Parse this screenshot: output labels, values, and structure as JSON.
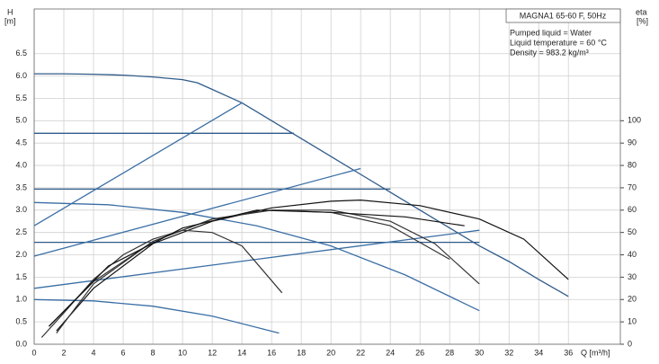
{
  "chart_data": {
    "type": "line",
    "title": "MAGNA1 65-60 F, 50Hz",
    "annotations": [
      "Pumped liquid = Water",
      "Liquid temperature = 60 °C",
      "Density = 983.2 kg/m³"
    ],
    "y_label": [
      "H",
      "[m]"
    ],
    "y2_label": [
      "eta",
      "[%]"
    ],
    "x_label": "Q [m³/h]",
    "xlim": [
      0,
      39.5
    ],
    "ylim": [
      0,
      7.5
    ],
    "y2lim": [
      0,
      150
    ],
    "xticks": [
      0,
      2,
      4,
      6,
      8,
      10,
      12,
      14,
      16,
      18,
      20,
      22,
      24,
      26,
      28,
      30,
      32,
      34,
      36
    ],
    "yticks": [
      {
        "value": 0,
        "label": "0.0"
      },
      {
        "value": 0.5,
        "label": "0.5"
      },
      {
        "value": 1,
        "label": "1.0"
      },
      {
        "value": 1.5,
        "label": "1.5"
      },
      {
        "value": 2,
        "label": "2.0"
      },
      {
        "value": 2.5,
        "label": "2.5"
      },
      {
        "value": 3,
        "label": "3.0"
      },
      {
        "value": 3.5,
        "label": "3.5"
      },
      {
        "value": 4,
        "label": "4.0"
      },
      {
        "value": 4.5,
        "label": "4.5"
      },
      {
        "value": 5,
        "label": "5.0"
      },
      {
        "value": 5.5,
        "label": "5.5"
      },
      {
        "value": 6,
        "label": "6.0"
      },
      {
        "value": 6.5,
        "label": "6.5"
      }
    ],
    "y2ticks": [
      0,
      10,
      20,
      30,
      40,
      50,
      60,
      70,
      80,
      90,
      100
    ],
    "grid": true,
    "series": [
      {
        "color": "#2f5b8a",
        "x": [
          0,
          2,
          4,
          6,
          8,
          10,
          11,
          12,
          14,
          16,
          18,
          20,
          22,
          24,
          26,
          28,
          30,
          32,
          34,
          36
        ],
        "values": [
          6.05,
          6.05,
          6.04,
          6.02,
          5.98,
          5.92,
          5.85,
          5.7,
          5.4,
          5.0,
          4.6,
          4.2,
          3.8,
          3.4,
          3.0,
          2.6,
          2.2,
          1.85,
          1.45,
          1.07
        ]
      },
      {
        "color": "#2f5b8a",
        "x": [
          0,
          17.5
        ],
        "values": [
          4.72,
          4.72
        ]
      },
      {
        "color": "#2f5b8a",
        "x": [
          0,
          24
        ],
        "values": [
          3.47,
          3.47
        ]
      },
      {
        "color": "#2f5b8a",
        "x": [
          0,
          30
        ],
        "values": [
          2.28,
          2.28
        ]
      },
      {
        "color": "#3a6ea5",
        "x": [
          0,
          14
        ],
        "values": [
          2.65,
          5.4
        ]
      },
      {
        "color": "#3a6ea5",
        "x": [
          0,
          22
        ],
        "values": [
          1.97,
          3.93
        ]
      },
      {
        "color": "#3a6ea5",
        "x": [
          0,
          30
        ],
        "values": [
          1.25,
          2.55
        ]
      },
      {
        "color": "#3a6ea5",
        "x": [
          0,
          5,
          10,
          15,
          20,
          25,
          30
        ],
        "values": [
          3.17,
          3.12,
          2.95,
          2.65,
          2.2,
          1.55,
          0.75
        ]
      },
      {
        "color": "#3a6ea5",
        "x": [
          0,
          4,
          8,
          12,
          16.5
        ],
        "values": [
          1.0,
          0.97,
          0.85,
          0.63,
          0.25
        ]
      },
      {
        "color": "#111111",
        "axis": "y2",
        "x": [
          1.5,
          4,
          8,
          12,
          16,
          20,
          22,
          26,
          30,
          33,
          36
        ],
        "values": [
          6,
          25,
          45,
          55,
          61,
          64,
          64.5,
          62,
          56,
          47,
          29
        ]
      },
      {
        "color": "#333333",
        "axis": "y2",
        "x": [
          1,
          4,
          8,
          12,
          16,
          20,
          24,
          27,
          30
        ],
        "values": [
          8,
          28,
          46,
          56,
          60,
          60,
          55,
          45,
          27
        ]
      },
      {
        "color": "#333333",
        "axis": "y2",
        "x": [
          0.5,
          2,
          4,
          6,
          8,
          10,
          12,
          14,
          16.7
        ],
        "values": [
          3,
          14,
          29,
          40,
          47,
          51,
          50,
          44,
          23
        ]
      },
      {
        "color": "#333333",
        "axis": "y2",
        "x": [
          1.5,
          4,
          8,
          12,
          16,
          20,
          24,
          28
        ],
        "values": [
          5,
          27,
          46,
          56,
          60,
          59,
          53,
          38
        ]
      },
      {
        "color": "#111111",
        "axis": "y2",
        "x": [
          1,
          5,
          10,
          15,
          20,
          25,
          29
        ],
        "values": [
          8,
          35,
          52,
          60,
          59,
          57,
          53
        ]
      }
    ]
  }
}
